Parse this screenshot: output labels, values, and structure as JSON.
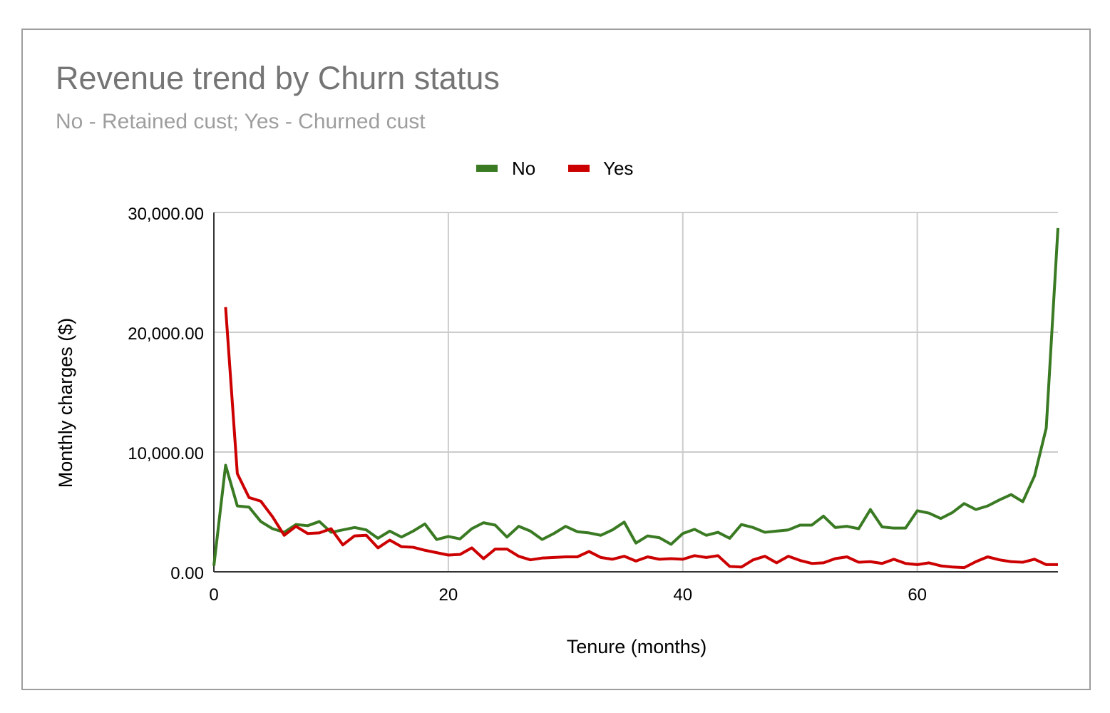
{
  "chart_data": {
    "type": "line",
    "title": "Revenue trend by Churn status",
    "subtitle": "No - Retained cust; Yes - Churned cust",
    "xlabel": "Tenure (months)",
    "ylabel": "Monthly charges ($)",
    "xlim": [
      0,
      72
    ],
    "ylim": [
      0,
      30000
    ],
    "x_ticks": [
      0,
      20,
      40,
      60
    ],
    "y_ticks": [
      0,
      10000,
      20000,
      30000
    ],
    "x_tick_labels": [
      "0",
      "20",
      "40",
      "60"
    ],
    "y_tick_labels": [
      "0.00",
      "10,000.00",
      "20,000.00",
      "30,000.00"
    ],
    "grid": true,
    "legend_position": "top-center",
    "series": [
      {
        "name": "No",
        "color": "#3a7a23",
        "x": [
          0,
          1,
          2,
          3,
          4,
          5,
          6,
          7,
          8,
          9,
          10,
          11,
          12,
          13,
          14,
          15,
          16,
          17,
          18,
          19,
          20,
          21,
          22,
          23,
          24,
          25,
          26,
          27,
          28,
          29,
          30,
          31,
          32,
          33,
          34,
          35,
          36,
          37,
          38,
          39,
          40,
          41,
          42,
          43,
          44,
          45,
          46,
          47,
          48,
          49,
          50,
          51,
          52,
          53,
          54,
          55,
          56,
          57,
          58,
          59,
          60,
          61,
          62,
          63,
          64,
          65,
          66,
          67,
          68,
          69,
          70,
          71,
          72
        ],
        "values": [
          500,
          8900,
          5500,
          5400,
          4200,
          3600,
          3300,
          3950,
          3850,
          4200,
          3300,
          3500,
          3700,
          3500,
          2800,
          3400,
          2900,
          3400,
          4000,
          2700,
          2950,
          2750,
          3600,
          4100,
          3900,
          2900,
          3800,
          3400,
          2700,
          3200,
          3800,
          3350,
          3250,
          3050,
          3500,
          4150,
          2400,
          3000,
          2850,
          2300,
          3200,
          3550,
          3050,
          3300,
          2800,
          3950,
          3700,
          3300,
          3400,
          3500,
          3900,
          3900,
          4650,
          3700,
          3800,
          3600,
          5200,
          3750,
          3650,
          3650,
          5100,
          4900,
          4450,
          4950,
          5700,
          5200,
          5500,
          6000,
          6450,
          5850,
          8000,
          12000,
          28700
        ]
      },
      {
        "name": "Yes",
        "color": "#cc0000",
        "x": [
          1,
          2,
          3,
          4,
          5,
          6,
          7,
          8,
          9,
          10,
          11,
          12,
          13,
          14,
          15,
          16,
          17,
          18,
          19,
          20,
          21,
          22,
          23,
          24,
          25,
          26,
          27,
          28,
          29,
          30,
          31,
          32,
          33,
          34,
          35,
          36,
          37,
          38,
          39,
          40,
          41,
          42,
          43,
          44,
          45,
          46,
          47,
          48,
          49,
          50,
          51,
          52,
          53,
          54,
          55,
          56,
          57,
          58,
          59,
          60,
          61,
          62,
          63,
          64,
          65,
          66,
          67,
          68,
          69,
          70,
          71,
          72
        ],
        "values": [
          22100,
          8200,
          6200,
          5900,
          4600,
          3050,
          3800,
          3200,
          3250,
          3600,
          2250,
          3000,
          3050,
          2000,
          2650,
          2100,
          2050,
          1800,
          1600,
          1400,
          1450,
          2000,
          1100,
          1900,
          1900,
          1300,
          1000,
          1150,
          1200,
          1250,
          1250,
          1700,
          1200,
          1050,
          1300,
          900,
          1250,
          1050,
          1100,
          1050,
          1350,
          1200,
          1350,
          450,
          400,
          1000,
          1300,
          750,
          1300,
          950,
          700,
          750,
          1100,
          1250,
          800,
          850,
          700,
          1050,
          700,
          600,
          750,
          500,
          400,
          350,
          850,
          1250,
          1000,
          850,
          800,
          1050,
          600,
          600
        ]
      }
    ]
  }
}
